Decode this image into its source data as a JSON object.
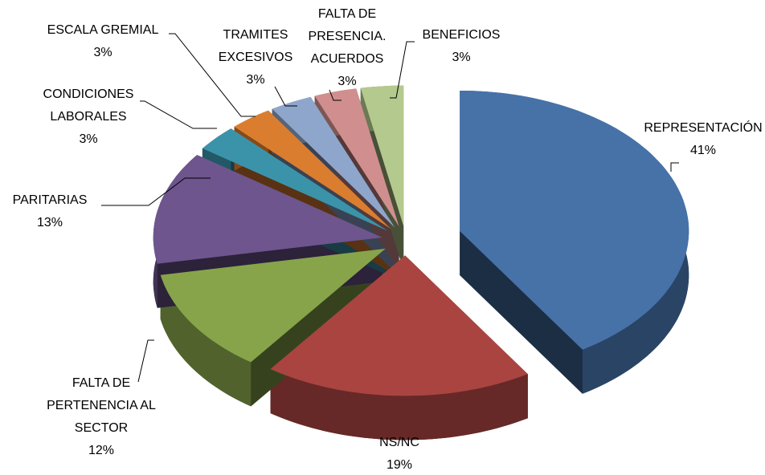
{
  "chart_data": {
    "type": "pie3d",
    "categories": [
      "REPRESENTACIÓN",
      "NS/NC",
      "FALTA DE\nPERTENENCIA  AL\nSECTOR",
      "PARITARIAS",
      "CONDICIONES\nLABORALES",
      "ESCALA GREMIAL",
      "TRAMITES\nEXCESIVOS",
      "FALTA DE\nPRESENCIA.\nACUERDOS",
      "BENEFICIOS"
    ],
    "values": [
      41,
      19,
      12,
      13,
      3,
      3,
      3,
      3,
      3
    ],
    "value_labels": [
      "41%",
      "19%",
      "12%",
      "13%",
      "3%",
      "3%",
      "3%",
      "3%",
      "3%"
    ],
    "colors": [
      "#4672a8",
      "#aa4441",
      "#87a44b",
      "#6e558e",
      "#3b93aa",
      "#db7d2f",
      "#8fa6cc",
      "#d08f8e",
      "#b4c98d"
    ]
  }
}
